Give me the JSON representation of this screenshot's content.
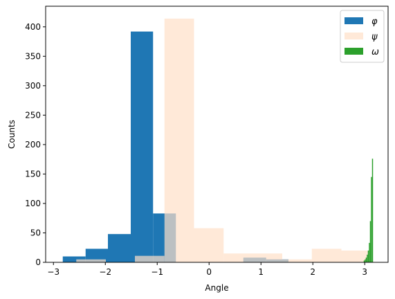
{
  "chart_data": {
    "type": "histogram",
    "xlabel": "Angle",
    "ylabel": "Counts",
    "xlim": [
      -3.15,
      3.45
    ],
    "ylim": [
      0,
      435
    ],
    "x_ticks": [
      -3,
      -2,
      -1,
      0,
      1,
      2,
      3
    ],
    "y_ticks": [
      0,
      50,
      100,
      150,
      200,
      250,
      300,
      350,
      400
    ],
    "grid": false,
    "legend_position": "top-right",
    "series": [
      {
        "name": "φ",
        "color": "#1f77b4",
        "opacity": 1.0,
        "bins": [
          {
            "x0": -2.82,
            "x1": -2.38,
            "count": 10
          },
          {
            "x0": -2.38,
            "x1": -1.95,
            "count": 23
          },
          {
            "x0": -1.95,
            "x1": -1.51,
            "count": 48
          },
          {
            "x0": -1.51,
            "x1": -1.08,
            "count": 392
          },
          {
            "x0": -1.08,
            "x1": -0.64,
            "count": 83
          },
          {
            "x0": -0.64,
            "x1": -0.21,
            "count": 0
          },
          {
            "x0": -0.21,
            "x1": 0.23,
            "count": 0
          },
          {
            "x0": 0.23,
            "x1": 0.66,
            "count": 0
          },
          {
            "x0": 0.66,
            "x1": 1.1,
            "count": 8
          },
          {
            "x0": 1.1,
            "x1": 1.53,
            "count": 5
          }
        ]
      },
      {
        "name": "ψ",
        "color": "#ffdfc8",
        "opacity": 0.7,
        "bins": [
          {
            "x0": -2.56,
            "x1": -1.99,
            "count": 5
          },
          {
            "x0": -1.99,
            "x1": -1.43,
            "count": 0
          },
          {
            "x0": -1.43,
            "x1": -0.86,
            "count": 11
          },
          {
            "x0": -0.86,
            "x1": -0.29,
            "count": 414
          },
          {
            "x0": -0.29,
            "x1": 0.28,
            "count": 58
          },
          {
            "x0": 0.28,
            "x1": 0.85,
            "count": 15
          },
          {
            "x0": 0.85,
            "x1": 1.41,
            "count": 15
          },
          {
            "x0": 1.41,
            "x1": 1.98,
            "count": 5
          },
          {
            "x0": 1.98,
            "x1": 2.55,
            "count": 23
          },
          {
            "x0": 2.55,
            "x1": 3.11,
            "count": 20
          }
        ]
      },
      {
        "name": "ω",
        "color": "#2ca02c",
        "opacity": 1.0,
        "bins": [
          {
            "x0": 2.98,
            "x1": 3.0,
            "count": 3
          },
          {
            "x0": 3.0,
            "x1": 3.02,
            "count": 5
          },
          {
            "x0": 3.02,
            "x1": 3.04,
            "count": 8
          },
          {
            "x0": 3.04,
            "x1": 3.06,
            "count": 13
          },
          {
            "x0": 3.06,
            "x1": 3.08,
            "count": 20
          },
          {
            "x0": 3.08,
            "x1": 3.1,
            "count": 33
          },
          {
            "x0": 3.1,
            "x1": 3.12,
            "count": 70
          },
          {
            "x0": 3.12,
            "x1": 3.14,
            "count": 145
          },
          {
            "x0": 3.14,
            "x1": 3.16,
            "count": 176
          }
        ]
      }
    ]
  }
}
